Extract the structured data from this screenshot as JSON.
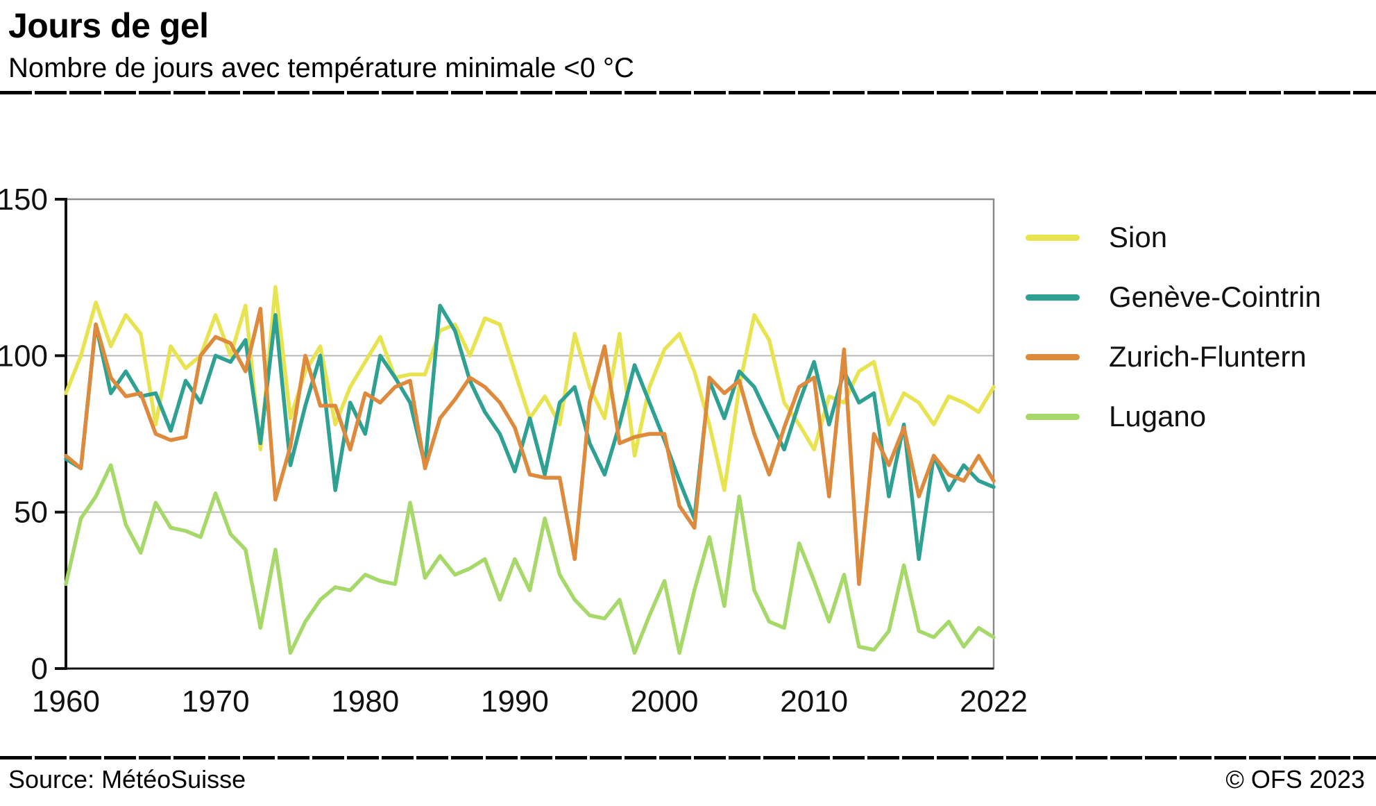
{
  "header": {
    "title": "Jours de gel",
    "subtitle": "Nombre de jours avec température minimale <0 °C"
  },
  "footer": {
    "source": "Source: MétéoSuisse",
    "copyright": "© OFS 2023"
  },
  "colors": {
    "axis": "#111111",
    "grid": "#b9b9b9",
    "frame": "#8c8c8c",
    "sion": "#e8e351",
    "geneve": "#2fa193",
    "zurich": "#dd8a3d",
    "lugano": "#a6d96a"
  },
  "chart_data": {
    "type": "line",
    "title": "Jours de gel",
    "subtitle": "Nombre de jours avec température minimale <0 °C",
    "x_start": 1960,
    "x_range": [
      1960,
      2022
    ],
    "x_ticks": [
      1960,
      1970,
      1980,
      1990,
      2000,
      2010,
      2022
    ],
    "y_ticks": [
      0,
      50,
      100,
      150
    ],
    "ylim": [
      0,
      150
    ],
    "grid": true,
    "legend_position": "right",
    "series": [
      {
        "id": "sion",
        "name": "Sion",
        "color": "#e8e351",
        "values": [
          88,
          100,
          117,
          103,
          113,
          107,
          78,
          103,
          96,
          100,
          113,
          100,
          116,
          70,
          122,
          80,
          95,
          103,
          78,
          90,
          98,
          106,
          93,
          94,
          94,
          108,
          110,
          100,
          112,
          110,
          95,
          80,
          87,
          78,
          107,
          90,
          80,
          107,
          68,
          90,
          102,
          107,
          95,
          78,
          57,
          90,
          113,
          105,
          85,
          78,
          70,
          87,
          85,
          95,
          98,
          78,
          88,
          85,
          78,
          87,
          85,
          82,
          90
        ]
      },
      {
        "id": "geneve",
        "name": "Genève-Cointrin",
        "color": "#2fa193",
        "values": [
          67,
          64,
          110,
          88,
          95,
          87,
          88,
          76,
          92,
          85,
          100,
          98,
          105,
          72,
          113,
          65,
          84,
          100,
          57,
          85,
          75,
          100,
          93,
          85,
          65,
          116,
          108,
          92,
          82,
          75,
          63,
          80,
          62,
          85,
          90,
          72,
          62,
          78,
          97,
          85,
          73,
          60,
          48,
          92,
          80,
          95,
          90,
          80,
          70,
          85,
          98,
          78,
          95,
          85,
          88,
          55,
          78,
          35,
          68,
          57,
          65,
          60,
          58
        ]
      },
      {
        "id": "zurich",
        "name": "Zurich-Fluntern",
        "color": "#dd8a3d",
        "values": [
          68,
          64,
          110,
          93,
          87,
          88,
          75,
          73,
          74,
          100,
          106,
          104,
          95,
          115,
          54,
          71,
          100,
          84,
          84,
          70,
          88,
          85,
          90,
          92,
          64,
          80,
          86,
          93,
          90,
          85,
          77,
          62,
          61,
          61,
          35,
          85,
          103,
          72,
          74,
          75,
          75,
          52,
          45,
          93,
          88,
          92,
          75,
          62,
          77,
          90,
          93,
          55,
          102,
          27,
          75,
          65,
          77,
          55,
          68,
          62,
          60,
          68,
          60
        ]
      },
      {
        "id": "lugano",
        "name": "Lugano",
        "color": "#a6d96a",
        "values": [
          27,
          48,
          55,
          65,
          46,
          37,
          53,
          45,
          44,
          42,
          56,
          43,
          38,
          13,
          38,
          5,
          15,
          22,
          26,
          25,
          30,
          28,
          27,
          53,
          29,
          36,
          30,
          32,
          35,
          22,
          35,
          25,
          48,
          30,
          22,
          17,
          16,
          22,
          5,
          17,
          28,
          5,
          25,
          42,
          20,
          55,
          25,
          15,
          13,
          40,
          28,
          15,
          30,
          7,
          6,
          12,
          33,
          12,
          10,
          15,
          7,
          13,
          10
        ]
      }
    ]
  }
}
